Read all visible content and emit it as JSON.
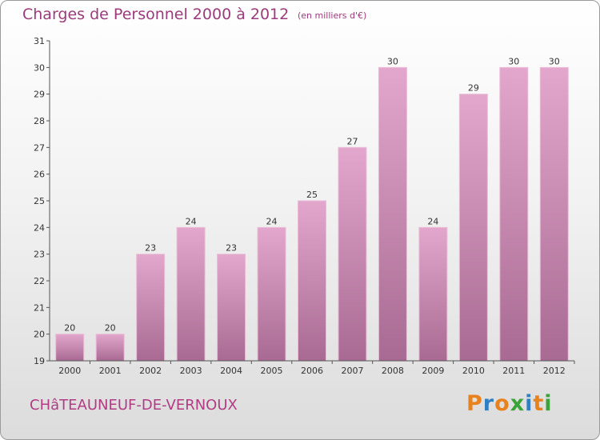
{
  "chart_data": {
    "type": "bar",
    "title": "Charges de Personnel 2000 à 2012",
    "subtitle": "(en milliers d'€)",
    "categories": [
      "2000",
      "2001",
      "2002",
      "2003",
      "2004",
      "2005",
      "2006",
      "2007",
      "2008",
      "2009",
      "2010",
      "2011",
      "2012"
    ],
    "values": [
      20,
      20,
      23,
      24,
      23,
      24,
      25,
      27,
      30,
      24,
      29,
      30,
      30
    ],
    "ylim": [
      19,
      31
    ],
    "yticks": [
      19,
      20,
      21,
      22,
      23,
      24,
      25,
      26,
      27,
      28,
      29,
      30,
      31
    ],
    "grid": false,
    "bar_color": "#d88fbb"
  },
  "footer": {
    "commune": "CHâTEAUNEUF-DE-VERNOUX",
    "logo_text": "Proxiti",
    "logo_colors": [
      "#e8821e",
      "#2f7fc2",
      "#e8821e",
      "#3aa33a",
      "#2f7fc2",
      "#e8821e",
      "#3aa33a"
    ]
  }
}
